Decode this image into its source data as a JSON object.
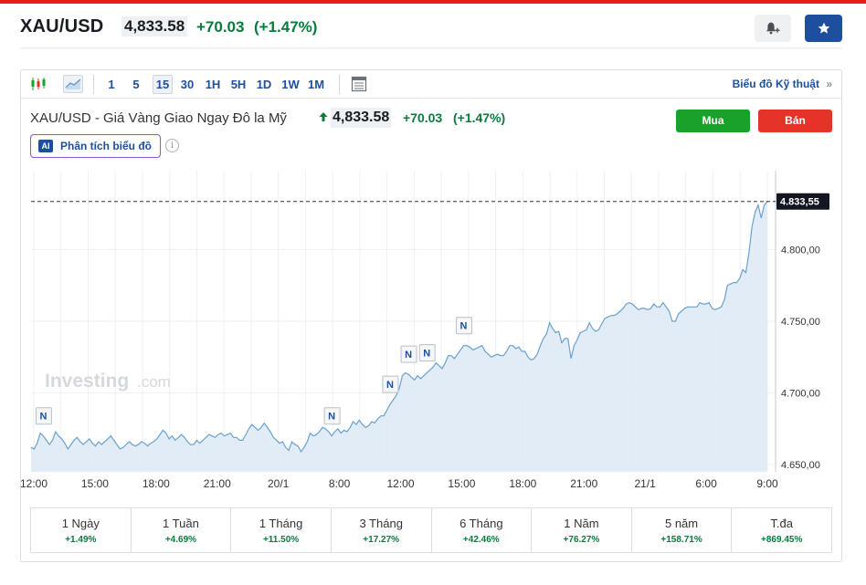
{
  "header": {
    "title": "XAU/USD",
    "price": "4,833.58",
    "change": "+70.03",
    "change_pct": "(+1.47%)",
    "alert_icon": "bell-plus-icon",
    "watchlist_icon": "star-icon"
  },
  "toolbar": {
    "chart_type_icons": [
      "candlestick-icon",
      "area-chart-icon"
    ],
    "timeframes": [
      "1",
      "5",
      "15",
      "30",
      "1H",
      "5H",
      "1D",
      "1W",
      "1M"
    ],
    "active_timeframe": "15",
    "table_icon": "table-icon",
    "technical_link": "Biểu đồ Kỹ thuật",
    "technical_link_icon": "double-chevron-right-icon"
  },
  "instrument": {
    "name": "XAU/USD - Giá Vàng Giao Ngay Đô la Mỹ",
    "price": "4,833.58",
    "change": "+70.03",
    "change_pct": "(+1.47%)",
    "buy_label": "Mua",
    "sell_label": "Bán",
    "ai_badge": "AI",
    "ai_label": "Phân tích biểu đồ",
    "info_glyph": "i"
  },
  "colors": {
    "accent_blue": "#1d4f9c",
    "positive": "#0a7a3d",
    "buy": "#1aa12b",
    "sell": "#e5332a",
    "line": "#6aa1cf",
    "area_fill": "#dde9f4"
  },
  "chart_data": {
    "type": "area",
    "watermark": "Investing.com",
    "x_tick_labels": [
      "12:00",
      "15:00",
      "18:00",
      "21:00",
      "20/1",
      "8:00",
      "12:00",
      "15:00",
      "18:00",
      "21:00",
      "21/1",
      "6:00",
      "9:00"
    ],
    "y_tick_labels": [
      "4.800,00",
      "4.750,00",
      "4.700,00",
      "4.650,00"
    ],
    "y_ticks": [
      4800,
      4750,
      4700,
      4650
    ],
    "ylim": [
      4645,
      4855
    ],
    "current_value": 4833.55,
    "current_label": "4.833,55",
    "grid": true,
    "news_marker_label": "N",
    "news_marker_indices": [
      4,
      98,
      117,
      123,
      129,
      141
    ],
    "values": [
      4662,
      4661,
      4665,
      4672,
      4670,
      4667,
      4664,
      4667,
      4673,
      4670,
      4668,
      4665,
      4661,
      4664,
      4667,
      4669,
      4666,
      4664,
      4666,
      4668,
      4665,
      4663,
      4666,
      4664,
      4666,
      4668,
      4670,
      4667,
      4664,
      4661,
      4662,
      4664,
      4666,
      4664,
      4663,
      4664,
      4666,
      4665,
      4663,
      4665,
      4666,
      4668,
      4671,
      4674,
      4672,
      4668,
      4670,
      4667,
      4669,
      4671,
      4669,
      4666,
      4664,
      4664,
      4667,
      4665,
      4667,
      4669,
      4671,
      4670,
      4669,
      4671,
      4672,
      4670,
      4671,
      4672,
      4669,
      4669,
      4667,
      4667,
      4671,
      4675,
      4678,
      4676,
      4674,
      4676,
      4679,
      4676,
      4673,
      4669,
      4667,
      4665,
      4666,
      4662,
      4660,
      4666,
      4664,
      4663,
      4659,
      4662,
      4666,
      4672,
      4670,
      4671,
      4673,
      4676,
      4675,
      4673,
      4670,
      4673,
      4675,
      4672,
      4674,
      4673,
      4676,
      4680,
      4678,
      4681,
      4678,
      4676,
      4677,
      4680,
      4679,
      4682,
      4684,
      4684,
      4688,
      4692,
      4695,
      4698,
      4703,
      4712,
      4714,
      4713,
      4711,
      4709,
      4712,
      4710,
      4712,
      4714,
      4716,
      4718,
      4721,
      4719,
      4717,
      4721,
      4726,
      4726,
      4724,
      4727,
      4730,
      4733,
      4733,
      4732,
      4730,
      4731,
      4732,
      4733,
      4729,
      4727,
      4725,
      4726,
      4727,
      4726,
      4726,
      4729,
      4733,
      4733,
      4731,
      4732,
      4729,
      4729,
      4725,
      4723,
      4724,
      4727,
      4733,
      4738,
      4741,
      4749,
      4745,
      4742,
      4743,
      4735,
      4738,
      4738,
      4724,
      4733,
      4737,
      4742,
      4743,
      4744,
      4749,
      4745,
      4743,
      4744,
      4748,
      4752,
      4753,
      4754,
      4754,
      4755,
      4757,
      4759,
      4762,
      4763,
      4762,
      4760,
      4758,
      4759,
      4759,
      4758,
      4759,
      4762,
      4760,
      4760,
      4763,
      4760,
      4757,
      4750,
      4750,
      4755,
      4757,
      4759,
      4760,
      4760,
      4760,
      4760,
      4763,
      4762,
      4762,
      4763,
      4759,
      4758,
      4759,
      4760,
      4765,
      4775,
      4776,
      4777,
      4777,
      4780,
      4786,
      4784,
      4798,
      4816,
      4826,
      4831,
      4822,
      4831,
      4833.55
    ]
  },
  "performance": [
    {
      "label": "1 Ngày",
      "value": "+1.49%"
    },
    {
      "label": "1 Tuần",
      "value": "+4.69%"
    },
    {
      "label": "1 Tháng",
      "value": "+11.50%"
    },
    {
      "label": "3 Tháng",
      "value": "+17.27%"
    },
    {
      "label": "6 Tháng",
      "value": "+42.46%"
    },
    {
      "label": "1 Năm",
      "value": "+76.27%"
    },
    {
      "label": "5 năm",
      "value": "+158.71%"
    },
    {
      "label": "T.đa",
      "value": "+869.45%"
    }
  ]
}
